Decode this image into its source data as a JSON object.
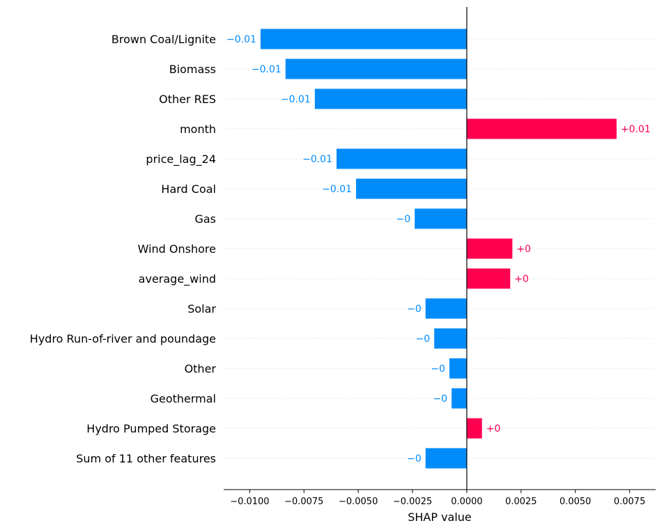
{
  "chart_data": {
    "type": "bar",
    "orientation": "horizontal",
    "title": "",
    "xlabel": "SHAP value",
    "ylabel": "",
    "xlim": [
      -0.0112,
      0.0087
    ],
    "xticks": [
      -0.01,
      -0.0075,
      -0.005,
      -0.0025,
      0,
      0.0025,
      0.005,
      0.0075
    ],
    "xtick_labels": [
      "−0.0100",
      "−0.0075",
      "−0.0050",
      "−0.0025",
      "0.0000",
      "0.0025",
      "0.0050",
      "0.0075"
    ],
    "grid": false,
    "legend": "none",
    "categories": [
      "Brown Coal/Lignite",
      "Biomass",
      "Other RES",
      "month",
      "price_lag_24",
      "Hard Coal",
      "Gas",
      "Wind Onshore",
      "average_wind",
      "Solar",
      "Hydro Run-of-river and poundage",
      "Other",
      "Geothermal",
      "Hydro Pumped Storage",
      "Sum of 11 other features"
    ],
    "values": [
      -0.0095,
      -0.00835,
      -0.007,
      0.0069,
      -0.006,
      -0.0051,
      -0.0024,
      0.0021,
      0.002,
      -0.0019,
      -0.0015,
      -0.0008,
      -0.0007,
      0.0007,
      -0.0019
    ],
    "value_labels": [
      "−0.01",
      "−0.01",
      "−0.01",
      "+0.01",
      "−0.01",
      "−0.01",
      "−0",
      "+0",
      "+0",
      "−0",
      "−0",
      "−0",
      "−0",
      "+0",
      "−0"
    ],
    "colors": {
      "positive": "#ff0051",
      "negative": "#008bfb",
      "zero_line": "#000000"
    }
  }
}
